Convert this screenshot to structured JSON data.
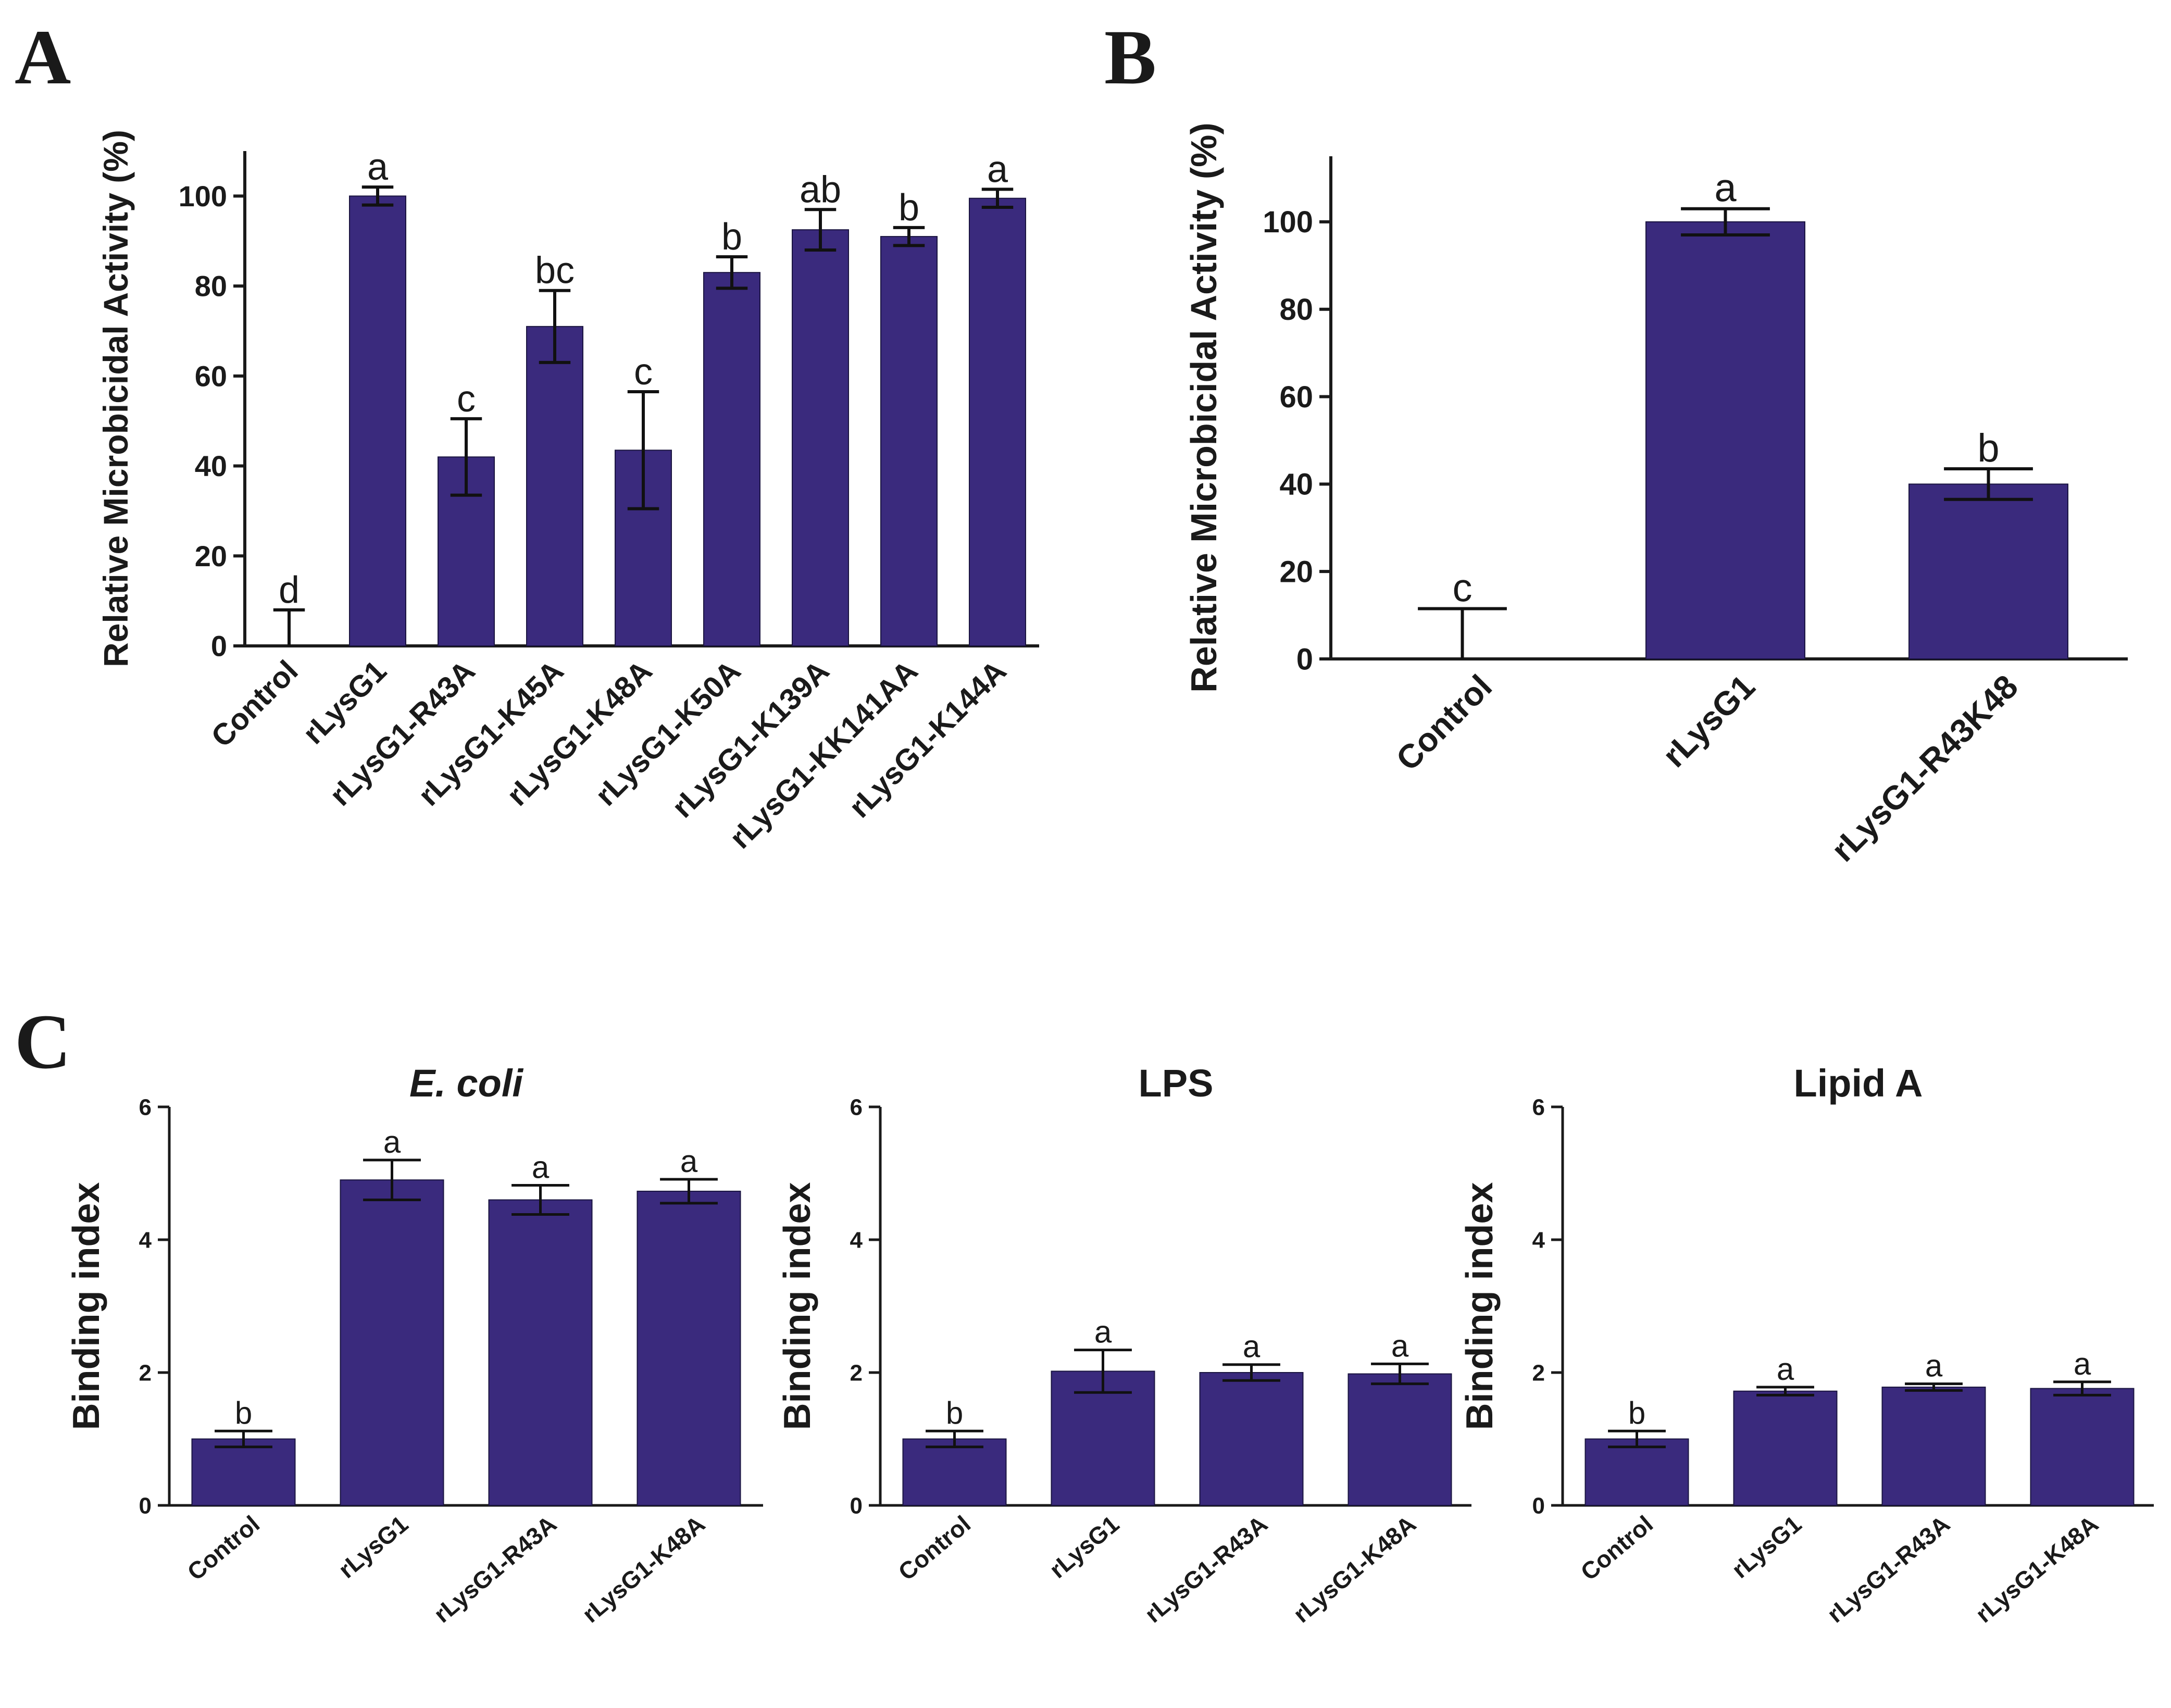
{
  "panel_letters": {
    "a": "A",
    "b": "B",
    "c": "C"
  },
  "colors": {
    "bar": "#3a2a7d",
    "axis": "#1a1a1a",
    "text": "#1a1a1a"
  },
  "chart_data": [
    {
      "id": "A",
      "type": "bar",
      "title": "",
      "xlabel": "",
      "ylabel": "Relative Microbicidal Activity (%)",
      "ylim": [
        0,
        110
      ],
      "yticks": [
        0,
        20,
        40,
        60,
        80,
        100
      ],
      "categories": [
        "Control",
        "rLysG1",
        "rLysG1-R43A",
        "rLysG1-K45A",
        "rLysG1-K48A",
        "rLysG1-K50A",
        "rLysG1-K139A",
        "rLysG1-KK141AA",
        "rLysG1-K144A"
      ],
      "values": [
        0,
        100,
        42,
        71,
        43.5,
        83,
        92.5,
        91,
        99.5
      ],
      "errors": [
        8,
        2,
        8.5,
        8,
        13,
        3.5,
        4.5,
        2,
        2
      ],
      "significance": [
        "d",
        "a",
        "c",
        "bc",
        "c",
        "b",
        "ab",
        "b",
        "a"
      ]
    },
    {
      "id": "B",
      "type": "bar",
      "title": "",
      "xlabel": "",
      "ylabel": "Relative Microbicidal Activity (%)",
      "ylim": [
        0,
        115
      ],
      "yticks": [
        0,
        20,
        40,
        60,
        80,
        100
      ],
      "categories": [
        "Control",
        "rLysG1",
        "rLysG1-R43K48"
      ],
      "values": [
        0,
        100,
        40
      ],
      "errors": [
        11.5,
        3,
        3.5
      ],
      "significance": [
        "c",
        "a",
        "b"
      ]
    },
    {
      "id": "C1",
      "type": "bar",
      "title": "E. coli",
      "xlabel": "",
      "ylabel": "Binding index",
      "ylim": [
        0,
        6
      ],
      "yticks": [
        0,
        2,
        4,
        6
      ],
      "categories": [
        "Control",
        "rLysG1",
        "rLysG1-R43A",
        "rLysG1-K48A"
      ],
      "values": [
        1.0,
        4.9,
        4.6,
        4.73
      ],
      "errors": [
        0.12,
        0.3,
        0.22,
        0.18
      ],
      "significance": [
        "b",
        "a",
        "a",
        "a"
      ]
    },
    {
      "id": "C2",
      "type": "bar",
      "title": "LPS",
      "xlabel": "",
      "ylabel": "Binding index",
      "ylim": [
        0,
        6
      ],
      "yticks": [
        0,
        2,
        4,
        6
      ],
      "categories": [
        "Control",
        "rLysG1",
        "rLysG1-R43A",
        "rLysG1-K48A"
      ],
      "values": [
        1.0,
        2.02,
        2.0,
        1.98
      ],
      "errors": [
        0.12,
        0.32,
        0.12,
        0.15
      ],
      "significance": [
        "b",
        "a",
        "a",
        "a"
      ]
    },
    {
      "id": "C3",
      "type": "bar",
      "title": "Lipid A",
      "xlabel": "",
      "ylabel": "Binding index",
      "ylim": [
        0,
        6
      ],
      "yticks": [
        0,
        2,
        4,
        6
      ],
      "categories": [
        "Control",
        "rLysG1",
        "rLysG1-R43A",
        "rLysG1-K48A"
      ],
      "values": [
        1.0,
        1.72,
        1.78,
        1.76
      ],
      "errors": [
        0.12,
        0.06,
        0.05,
        0.1
      ],
      "significance": [
        "b",
        "a",
        "a",
        "a"
      ]
    }
  ]
}
